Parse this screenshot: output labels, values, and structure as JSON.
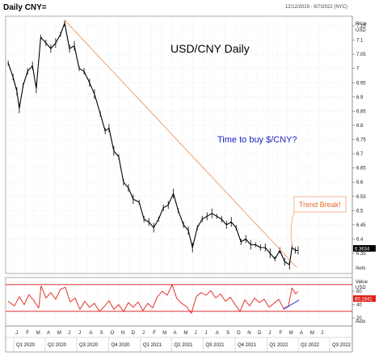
{
  "header": {
    "title": "Daily CNY=",
    "date_range": "12/12/2019 - 9/7/2022 (NYC)"
  },
  "chart_data": [
    {
      "type": "candlestick",
      "title": "USD/CNY Daily",
      "ylabel": "Price USD",
      "ylim": [
        6.28,
        7.19
      ],
      "yticks": [
        "7.15",
        "7.1",
        "7.05",
        "7",
        "6.95",
        "6.9",
        "6.85",
        "6.8",
        "6.75",
        "6.7",
        "6.65",
        "6.6",
        "6.55",
        "6.5",
        "6.45",
        "6.4",
        "6.35"
      ],
      "last_value": "6.3634",
      "pair": "USD",
      "x_months": [
        "J",
        "F",
        "M",
        "A",
        "M",
        "J",
        "J",
        "A",
        "S",
        "O",
        "N",
        "D",
        "J",
        "F",
        "M",
        "A",
        "M",
        "J",
        "J",
        "A",
        "S",
        "O",
        "N",
        "D",
        "J",
        "F",
        "M",
        "A",
        "M",
        "J"
      ],
      "x_quarters": [
        "Q1 2020",
        "Q2 2020",
        "Q3 2020",
        "Q4 2020",
        "Q1 2021",
        "Q2 2021",
        "Q3 2021",
        "Q4 2021",
        "Q1 2022",
        "Q2 2022",
        "Q3 2022"
      ],
      "path_points": [
        {
          "x": "2019-12-16",
          "y": 7.02
        },
        {
          "x": "2019-12-30",
          "y": 6.97
        },
        {
          "x": "2020-01-10",
          "y": 6.92
        },
        {
          "x": "2020-01-17",
          "y": 6.86
        },
        {
          "x": "2020-01-28",
          "y": 6.94
        },
        {
          "x": "2020-02-10",
          "y": 6.99
        },
        {
          "x": "2020-02-24",
          "y": 7.01
        },
        {
          "x": "2020-03-06",
          "y": 6.93
        },
        {
          "x": "2020-03-19",
          "y": 7.11
        },
        {
          "x": "2020-04-03",
          "y": 7.09
        },
        {
          "x": "2020-04-17",
          "y": 7.07
        },
        {
          "x": "2020-05-01",
          "y": 7.09
        },
        {
          "x": "2020-05-15",
          "y": 7.12
        },
        {
          "x": "2020-05-27",
          "y": 7.16
        },
        {
          "x": "2020-06-10",
          "y": 7.07
        },
        {
          "x": "2020-06-24",
          "y": 7.08
        },
        {
          "x": "2020-07-08",
          "y": 7.0
        },
        {
          "x": "2020-07-22",
          "y": 6.99
        },
        {
          "x": "2020-08-07",
          "y": 6.95
        },
        {
          "x": "2020-08-21",
          "y": 6.91
        },
        {
          "x": "2020-09-07",
          "y": 6.84
        },
        {
          "x": "2020-09-21",
          "y": 6.78
        },
        {
          "x": "2020-10-02",
          "y": 6.79
        },
        {
          "x": "2020-10-16",
          "y": 6.71
        },
        {
          "x": "2020-10-30",
          "y": 6.69
        },
        {
          "x": "2020-11-13",
          "y": 6.6
        },
        {
          "x": "2020-11-27",
          "y": 6.58
        },
        {
          "x": "2020-12-11",
          "y": 6.54
        },
        {
          "x": "2020-12-28",
          "y": 6.53
        },
        {
          "x": "2021-01-11",
          "y": 6.47
        },
        {
          "x": "2021-01-25",
          "y": 6.46
        },
        {
          "x": "2021-02-08",
          "y": 6.44
        },
        {
          "x": "2021-02-22",
          "y": 6.47
        },
        {
          "x": "2021-03-08",
          "y": 6.51
        },
        {
          "x": "2021-03-22",
          "y": 6.52
        },
        {
          "x": "2021-04-06",
          "y": 6.56
        },
        {
          "x": "2021-04-20",
          "y": 6.5
        },
        {
          "x": "2021-05-05",
          "y": 6.45
        },
        {
          "x": "2021-05-19",
          "y": 6.43
        },
        {
          "x": "2021-05-31",
          "y": 6.37
        },
        {
          "x": "2021-06-14",
          "y": 6.44
        },
        {
          "x": "2021-06-28",
          "y": 6.47
        },
        {
          "x": "2021-07-12",
          "y": 6.48
        },
        {
          "x": "2021-07-26",
          "y": 6.49
        },
        {
          "x": "2021-08-09",
          "y": 6.48
        },
        {
          "x": "2021-08-23",
          "y": 6.47
        },
        {
          "x": "2021-09-06",
          "y": 6.45
        },
        {
          "x": "2021-09-20",
          "y": 6.46
        },
        {
          "x": "2021-10-04",
          "y": 6.44
        },
        {
          "x": "2021-10-18",
          "y": 6.39
        },
        {
          "x": "2021-11-01",
          "y": 6.4
        },
        {
          "x": "2021-11-15",
          "y": 6.38
        },
        {
          "x": "2021-11-29",
          "y": 6.38
        },
        {
          "x": "2021-12-13",
          "y": 6.37
        },
        {
          "x": "2021-12-27",
          "y": 6.37
        },
        {
          "x": "2022-01-10",
          "y": 6.35
        },
        {
          "x": "2022-01-24",
          "y": 6.33
        },
        {
          "x": "2022-02-07",
          "y": 6.36
        },
        {
          "x": "2022-02-21",
          "y": 6.32
        },
        {
          "x": "2022-03-07",
          "y": 6.31
        },
        {
          "x": "2022-03-14",
          "y": 6.37
        },
        {
          "x": "2022-03-24",
          "y": 6.36
        },
        {
          "x": "2022-04-01",
          "y": 6.36
        }
      ],
      "trend_line": {
        "start": {
          "x": "2020-05-27",
          "y": 7.17
        },
        "end": {
          "x": "2022-03-28",
          "y": 6.3
        }
      },
      "annotations": [
        "USD/CNY Daily",
        "Time to buy $/CNY?",
        "Trend Break!"
      ]
    },
    {
      "type": "line",
      "panel": "indicator",
      "ylabel": "Value USD",
      "yticks": [
        "60",
        "40",
        "20"
      ],
      "ylim": [
        15,
        85
      ],
      "reference_lines": [
        70,
        30
      ],
      "last_value": "60.1941",
      "series_points": [
        {
          "x": "2019-12-16",
          "y": 45
        },
        {
          "x": "2020-01-03",
          "y": 38
        },
        {
          "x": "2020-01-17",
          "y": 52
        },
        {
          "x": "2020-01-31",
          "y": 40
        },
        {
          "x": "2020-02-14",
          "y": 55
        },
        {
          "x": "2020-02-28",
          "y": 46
        },
        {
          "x": "2020-03-13",
          "y": 35
        },
        {
          "x": "2020-03-20",
          "y": 68
        },
        {
          "x": "2020-04-03",
          "y": 50
        },
        {
          "x": "2020-04-17",
          "y": 58
        },
        {
          "x": "2020-05-01",
          "y": 48
        },
        {
          "x": "2020-05-15",
          "y": 63
        },
        {
          "x": "2020-05-29",
          "y": 66
        },
        {
          "x": "2020-06-12",
          "y": 44
        },
        {
          "x": "2020-06-26",
          "y": 50
        },
        {
          "x": "2020-07-10",
          "y": 33
        },
        {
          "x": "2020-07-24",
          "y": 45
        },
        {
          "x": "2020-08-07",
          "y": 36
        },
        {
          "x": "2020-08-21",
          "y": 42
        },
        {
          "x": "2020-09-04",
          "y": 30
        },
        {
          "x": "2020-09-18",
          "y": 37
        },
        {
          "x": "2020-10-02",
          "y": 46
        },
        {
          "x": "2020-10-16",
          "y": 33
        },
        {
          "x": "2020-10-30",
          "y": 40
        },
        {
          "x": "2020-11-13",
          "y": 30
        },
        {
          "x": "2020-11-27",
          "y": 43
        },
        {
          "x": "2020-12-11",
          "y": 36
        },
        {
          "x": "2020-12-25",
          "y": 44
        },
        {
          "x": "2021-01-08",
          "y": 31
        },
        {
          "x": "2021-01-22",
          "y": 42
        },
        {
          "x": "2021-02-05",
          "y": 35
        },
        {
          "x": "2021-02-19",
          "y": 52
        },
        {
          "x": "2021-03-05",
          "y": 60
        },
        {
          "x": "2021-03-19",
          "y": 54
        },
        {
          "x": "2021-04-02",
          "y": 70
        },
        {
          "x": "2021-04-16",
          "y": 49
        },
        {
          "x": "2021-04-30",
          "y": 42
        },
        {
          "x": "2021-05-14",
          "y": 37
        },
        {
          "x": "2021-05-28",
          "y": 27
        },
        {
          "x": "2021-06-11",
          "y": 52
        },
        {
          "x": "2021-06-25",
          "y": 58
        },
        {
          "x": "2021-07-09",
          "y": 54
        },
        {
          "x": "2021-07-23",
          "y": 61
        },
        {
          "x": "2021-08-06",
          "y": 50
        },
        {
          "x": "2021-08-20",
          "y": 56
        },
        {
          "x": "2021-09-03",
          "y": 45
        },
        {
          "x": "2021-09-17",
          "y": 51
        },
        {
          "x": "2021-10-01",
          "y": 40
        },
        {
          "x": "2021-10-15",
          "y": 30
        },
        {
          "x": "2021-10-29",
          "y": 47
        },
        {
          "x": "2021-11-12",
          "y": 38
        },
        {
          "x": "2021-11-26",
          "y": 50
        },
        {
          "x": "2021-12-10",
          "y": 43
        },
        {
          "x": "2021-12-24",
          "y": 48
        },
        {
          "x": "2022-01-07",
          "y": 36
        },
        {
          "x": "2022-01-21",
          "y": 42
        },
        {
          "x": "2022-02-04",
          "y": 48
        },
        {
          "x": "2022-02-18",
          "y": 34
        },
        {
          "x": "2022-03-04",
          "y": 38
        },
        {
          "x": "2022-03-14",
          "y": 65
        },
        {
          "x": "2022-03-25",
          "y": 56
        },
        {
          "x": "2022-04-01",
          "y": 60
        }
      ],
      "trend_line": {
        "start": {
          "x": "2022-02-18",
          "y": 33
        },
        "end": {
          "x": "2022-04-04",
          "y": 47
        }
      }
    }
  ],
  "colors": {
    "price_line": "#000000",
    "price_trend": "#f0a070",
    "buy_text": "#1b1fbf",
    "break_text": "#e46a2a",
    "break_box": "#f3b58f",
    "rsi_line": "#e0201c",
    "rsi_bands": "#e03030",
    "rsi_trend": "#2a3bd8",
    "grid": "#d9d9d9",
    "price_tag_bg": "#000000",
    "rsi_tag_bg": "#e0201c"
  }
}
